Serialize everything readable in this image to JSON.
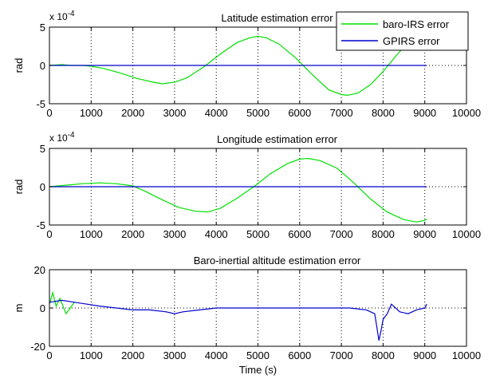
{
  "chart_data": [
    {
      "type": "line",
      "title": "Latitude estimation error",
      "ylabel": "rad",
      "xlabel": "",
      "y_exponent": "x 10",
      "y_exponent_power": "-4",
      "xlim": [
        0,
        10000
      ],
      "ylim": [
        -5,
        5
      ],
      "xticks": [
        0,
        1000,
        2000,
        3000,
        4000,
        5000,
        6000,
        7000,
        8000,
        9000,
        10000
      ],
      "yticks": [
        -5,
        0,
        5
      ],
      "grid": "x-dotted",
      "legend": {
        "placement": "top-right",
        "entries": [
          "baro-IRS error",
          "GPIRS error"
        ]
      },
      "series": [
        {
          "name": "baro-IRS error",
          "color": "#00e000",
          "x": [
            0,
            300,
            500,
            800,
            1000,
            1300,
            1700,
            2100,
            2500,
            2700,
            3000,
            3300,
            3700,
            4100,
            4500,
            4800,
            5000,
            5200,
            5500,
            5900,
            6300,
            6700,
            7000,
            7150,
            7400,
            7700,
            8000,
            8300,
            8600,
            8900,
            9050
          ],
          "values": [
            0.0,
            0.1,
            0.0,
            0.0,
            -0.1,
            -0.4,
            -1.0,
            -1.7,
            -2.2,
            -2.4,
            -2.2,
            -1.6,
            -0.2,
            1.5,
            3.0,
            3.6,
            3.8,
            3.6,
            2.8,
            1.0,
            -1.2,
            -3.2,
            -3.8,
            -3.9,
            -3.6,
            -2.5,
            -0.8,
            1.2,
            3.0,
            4.2,
            4.5
          ]
        },
        {
          "name": "GPIRS error",
          "color": "#0000cc",
          "x": [
            0,
            9050
          ],
          "values": [
            0,
            0
          ]
        }
      ]
    },
    {
      "type": "line",
      "title": "Longitude estimation error",
      "ylabel": "rad",
      "xlabel": "",
      "y_exponent": "x 10",
      "y_exponent_power": "-4",
      "xlim": [
        0,
        10000
      ],
      "ylim": [
        -5,
        5
      ],
      "xticks": [
        0,
        1000,
        2000,
        3000,
        4000,
        5000,
        6000,
        7000,
        8000,
        9000,
        10000
      ],
      "yticks": [
        -5,
        0,
        5
      ],
      "grid": "x-dotted",
      "series": [
        {
          "name": "baro-IRS error",
          "color": "#00e000",
          "x": [
            0,
            400,
            800,
            1200,
            1600,
            2000,
            2300,
            2700,
            3100,
            3500,
            3800,
            4100,
            4500,
            4900,
            5300,
            5700,
            6000,
            6200,
            6500,
            6900,
            7300,
            7700,
            8100,
            8500,
            8800,
            9000,
            9050
          ],
          "values": [
            0.0,
            0.2,
            0.4,
            0.5,
            0.4,
            0.1,
            -0.6,
            -1.7,
            -2.7,
            -3.2,
            -3.3,
            -2.8,
            -1.5,
            0.0,
            1.7,
            3.0,
            3.6,
            3.7,
            3.4,
            2.4,
            0.5,
            -1.6,
            -3.3,
            -4.3,
            -4.6,
            -4.4,
            -4.2
          ]
        },
        {
          "name": "GPIRS error",
          "color": "#0000cc",
          "x": [
            0,
            9050
          ],
          "values": [
            0,
            0
          ]
        }
      ]
    },
    {
      "type": "line",
      "title": "Baro-inertial altitude estimation error",
      "ylabel": "m",
      "xlabel": "Time (s)",
      "xlim": [
        0,
        10000
      ],
      "ylim": [
        -20,
        20
      ],
      "xticks": [
        0,
        1000,
        2000,
        3000,
        4000,
        5000,
        6000,
        7000,
        8000,
        9000,
        10000
      ],
      "yticks": [
        -20,
        0,
        20
      ],
      "grid": "x-dotted",
      "series": [
        {
          "name": "baro-IRS error",
          "color": "#00e000",
          "x": [
            0,
            80,
            160,
            250,
            400,
            600
          ],
          "values": [
            2,
            8,
            1,
            5,
            -3,
            3
          ]
        },
        {
          "name": "GPIRS error",
          "color": "#0000cc",
          "x": [
            0,
            300,
            600,
            900,
            1200,
            1600,
            2000,
            2400,
            2800,
            3000,
            3200,
            3600,
            4000,
            4400,
            4800,
            5200,
            5600,
            6000,
            6400,
            6800,
            7200,
            7600,
            7800,
            7850,
            7900,
            7950,
            8000,
            8100,
            8200,
            8400,
            8600,
            8800,
            9000,
            9050
          ],
          "values": [
            3,
            4,
            3,
            2,
            1,
            0,
            -1,
            -1,
            -2,
            -3,
            -2,
            -1,
            0,
            0,
            0,
            0,
            0,
            0,
            0,
            0,
            0,
            -1,
            -3,
            -10,
            -17,
            -12,
            -6,
            -3,
            2,
            -2,
            -3,
            -1,
            0,
            2
          ]
        }
      ]
    }
  ]
}
